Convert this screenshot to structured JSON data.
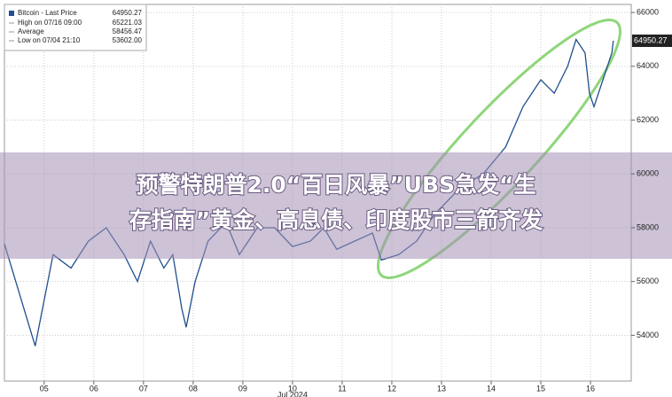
{
  "chart_data": {
    "type": "line",
    "legend_title": "Bitcoin - Last Price",
    "legend_value": "64950.27",
    "legend_entries": [
      {
        "label": "High on 07/16 09:00",
        "value": "65221.03"
      },
      {
        "label": "Average",
        "value": "58456.47"
      },
      {
        "label": "Low on 07/04 21:10",
        "value": "53602.00"
      }
    ],
    "last_label": "64950.27",
    "x": [
      4.2,
      4.82,
      5.18,
      5.54,
      5.89,
      6.25,
      6.61,
      6.88,
      7.14,
      7.41,
      7.59,
      7.77,
      7.86,
      8.04,
      8.3,
      8.66,
      8.93,
      9.29,
      9.64,
      10.0,
      10.36,
      10.63,
      10.89,
      11.25,
      11.61,
      11.79,
      12.14,
      12.5,
      12.86,
      13.39,
      13.84,
      14.29,
      14.64,
      15.0,
      15.27,
      15.54,
      15.71,
      15.89,
      15.98,
      16.07,
      16.25,
      16.43,
      16.46
    ],
    "series": [
      {
        "name": "Bitcoin",
        "color": "#1f4f8f",
        "values": [
          57400,
          53600,
          57000,
          56500,
          57500,
          58000,
          57000,
          56000,
          57500,
          56500,
          57000,
          55000,
          54300,
          56000,
          57500,
          58200,
          57000,
          58000,
          58000,
          57300,
          57500,
          58000,
          57200,
          57500,
          57800,
          56800,
          57000,
          57500,
          58500,
          59500,
          60000,
          61000,
          62500,
          63500,
          63000,
          64000,
          65000,
          64500,
          63000,
          62500,
          63500,
          64500,
          64950
        ]
      }
    ],
    "xlim": [
      4.2,
      16.82
    ],
    "ylim": [
      52300,
      66300
    ],
    "xticks": [
      {
        "value": 5,
        "label": "05"
      },
      {
        "value": 6,
        "label": "06"
      },
      {
        "value": 7,
        "label": "07"
      },
      {
        "value": 8,
        "label": "08"
      },
      {
        "value": 9,
        "label": "09"
      },
      {
        "value": 10,
        "label": "10"
      },
      {
        "value": 11,
        "label": "11"
      },
      {
        "value": 12,
        "label": "12"
      },
      {
        "value": 13,
        "label": "13"
      },
      {
        "value": 14,
        "label": "14"
      },
      {
        "value": 15,
        "label": "15"
      },
      {
        "value": 16,
        "label": "16"
      }
    ],
    "x_sublabel": "Jul 2024",
    "yticks": [
      54000,
      56000,
      58000,
      60000,
      62000,
      64000,
      66000
    ],
    "grid": true
  },
  "banner": {
    "lines": [
      "预警特朗普2.0“百日风暴”UBS急发“生",
      "存指南”黄金、高息债、印度股市三箭齐发"
    ]
  }
}
